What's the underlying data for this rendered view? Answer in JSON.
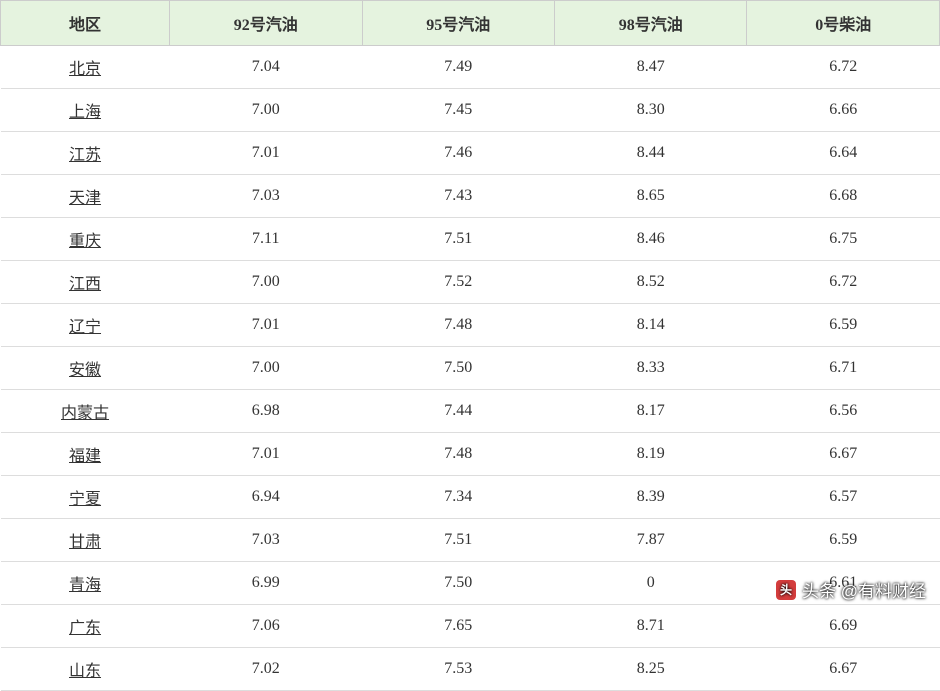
{
  "table": {
    "columns": [
      "地区",
      "92号汽油",
      "95号汽油",
      "98号汽油",
      "0号柴油"
    ],
    "column_widths": [
      "18%",
      "20.5%",
      "20.5%",
      "20.5%",
      "20.5%"
    ],
    "header_bg": "#e5f3df",
    "header_border": "#cccccc",
    "row_border": "#dddddd",
    "font_family": "SimSun",
    "font_size": 16,
    "text_color": "#333333",
    "region_underline": true,
    "rows": [
      {
        "region": "北京",
        "p92": "7.04",
        "p95": "7.49",
        "p98": "8.47",
        "diesel": "6.72"
      },
      {
        "region": "上海",
        "p92": "7.00",
        "p95": "7.45",
        "p98": "8.30",
        "diesel": "6.66"
      },
      {
        "region": "江苏",
        "p92": "7.01",
        "p95": "7.46",
        "p98": "8.44",
        "diesel": "6.64"
      },
      {
        "region": "天津",
        "p92": "7.03",
        "p95": "7.43",
        "p98": "8.65",
        "diesel": "6.68"
      },
      {
        "region": "重庆",
        "p92": "7.11",
        "p95": "7.51",
        "p98": "8.46",
        "diesel": "6.75"
      },
      {
        "region": "江西",
        "p92": "7.00",
        "p95": "7.52",
        "p98": "8.52",
        "diesel": "6.72"
      },
      {
        "region": "辽宁",
        "p92": "7.01",
        "p95": "7.48",
        "p98": "8.14",
        "diesel": "6.59"
      },
      {
        "region": "安徽",
        "p92": "7.00",
        "p95": "7.50",
        "p98": "8.33",
        "diesel": "6.71"
      },
      {
        "region": "内蒙古",
        "p92": "6.98",
        "p95": "7.44",
        "p98": "8.17",
        "diesel": "6.56"
      },
      {
        "region": "福建",
        "p92": "7.01",
        "p95": "7.48",
        "p98": "8.19",
        "diesel": "6.67"
      },
      {
        "region": "宁夏",
        "p92": "6.94",
        "p95": "7.34",
        "p98": "8.39",
        "diesel": "6.57"
      },
      {
        "region": "甘肃",
        "p92": "7.03",
        "p95": "7.51",
        "p98": "7.87",
        "diesel": "6.59"
      },
      {
        "region": "青海",
        "p92": "6.99",
        "p95": "7.50",
        "p98": "0",
        "diesel": "6.61"
      },
      {
        "region": "广东",
        "p92": "7.06",
        "p95": "7.65",
        "p98": "8.71",
        "diesel": "6.69"
      },
      {
        "region": "山东",
        "p92": "7.02",
        "p95": "7.53",
        "p98": "8.25",
        "diesel": "6.67"
      }
    ]
  },
  "watermark": {
    "logo_glyph": "头",
    "logo_bg": "#d43d3d",
    "text": "头条 @有料财经",
    "text_color": "#ffffff",
    "font_family": "Microsoft YaHei",
    "font_size": 17
  }
}
